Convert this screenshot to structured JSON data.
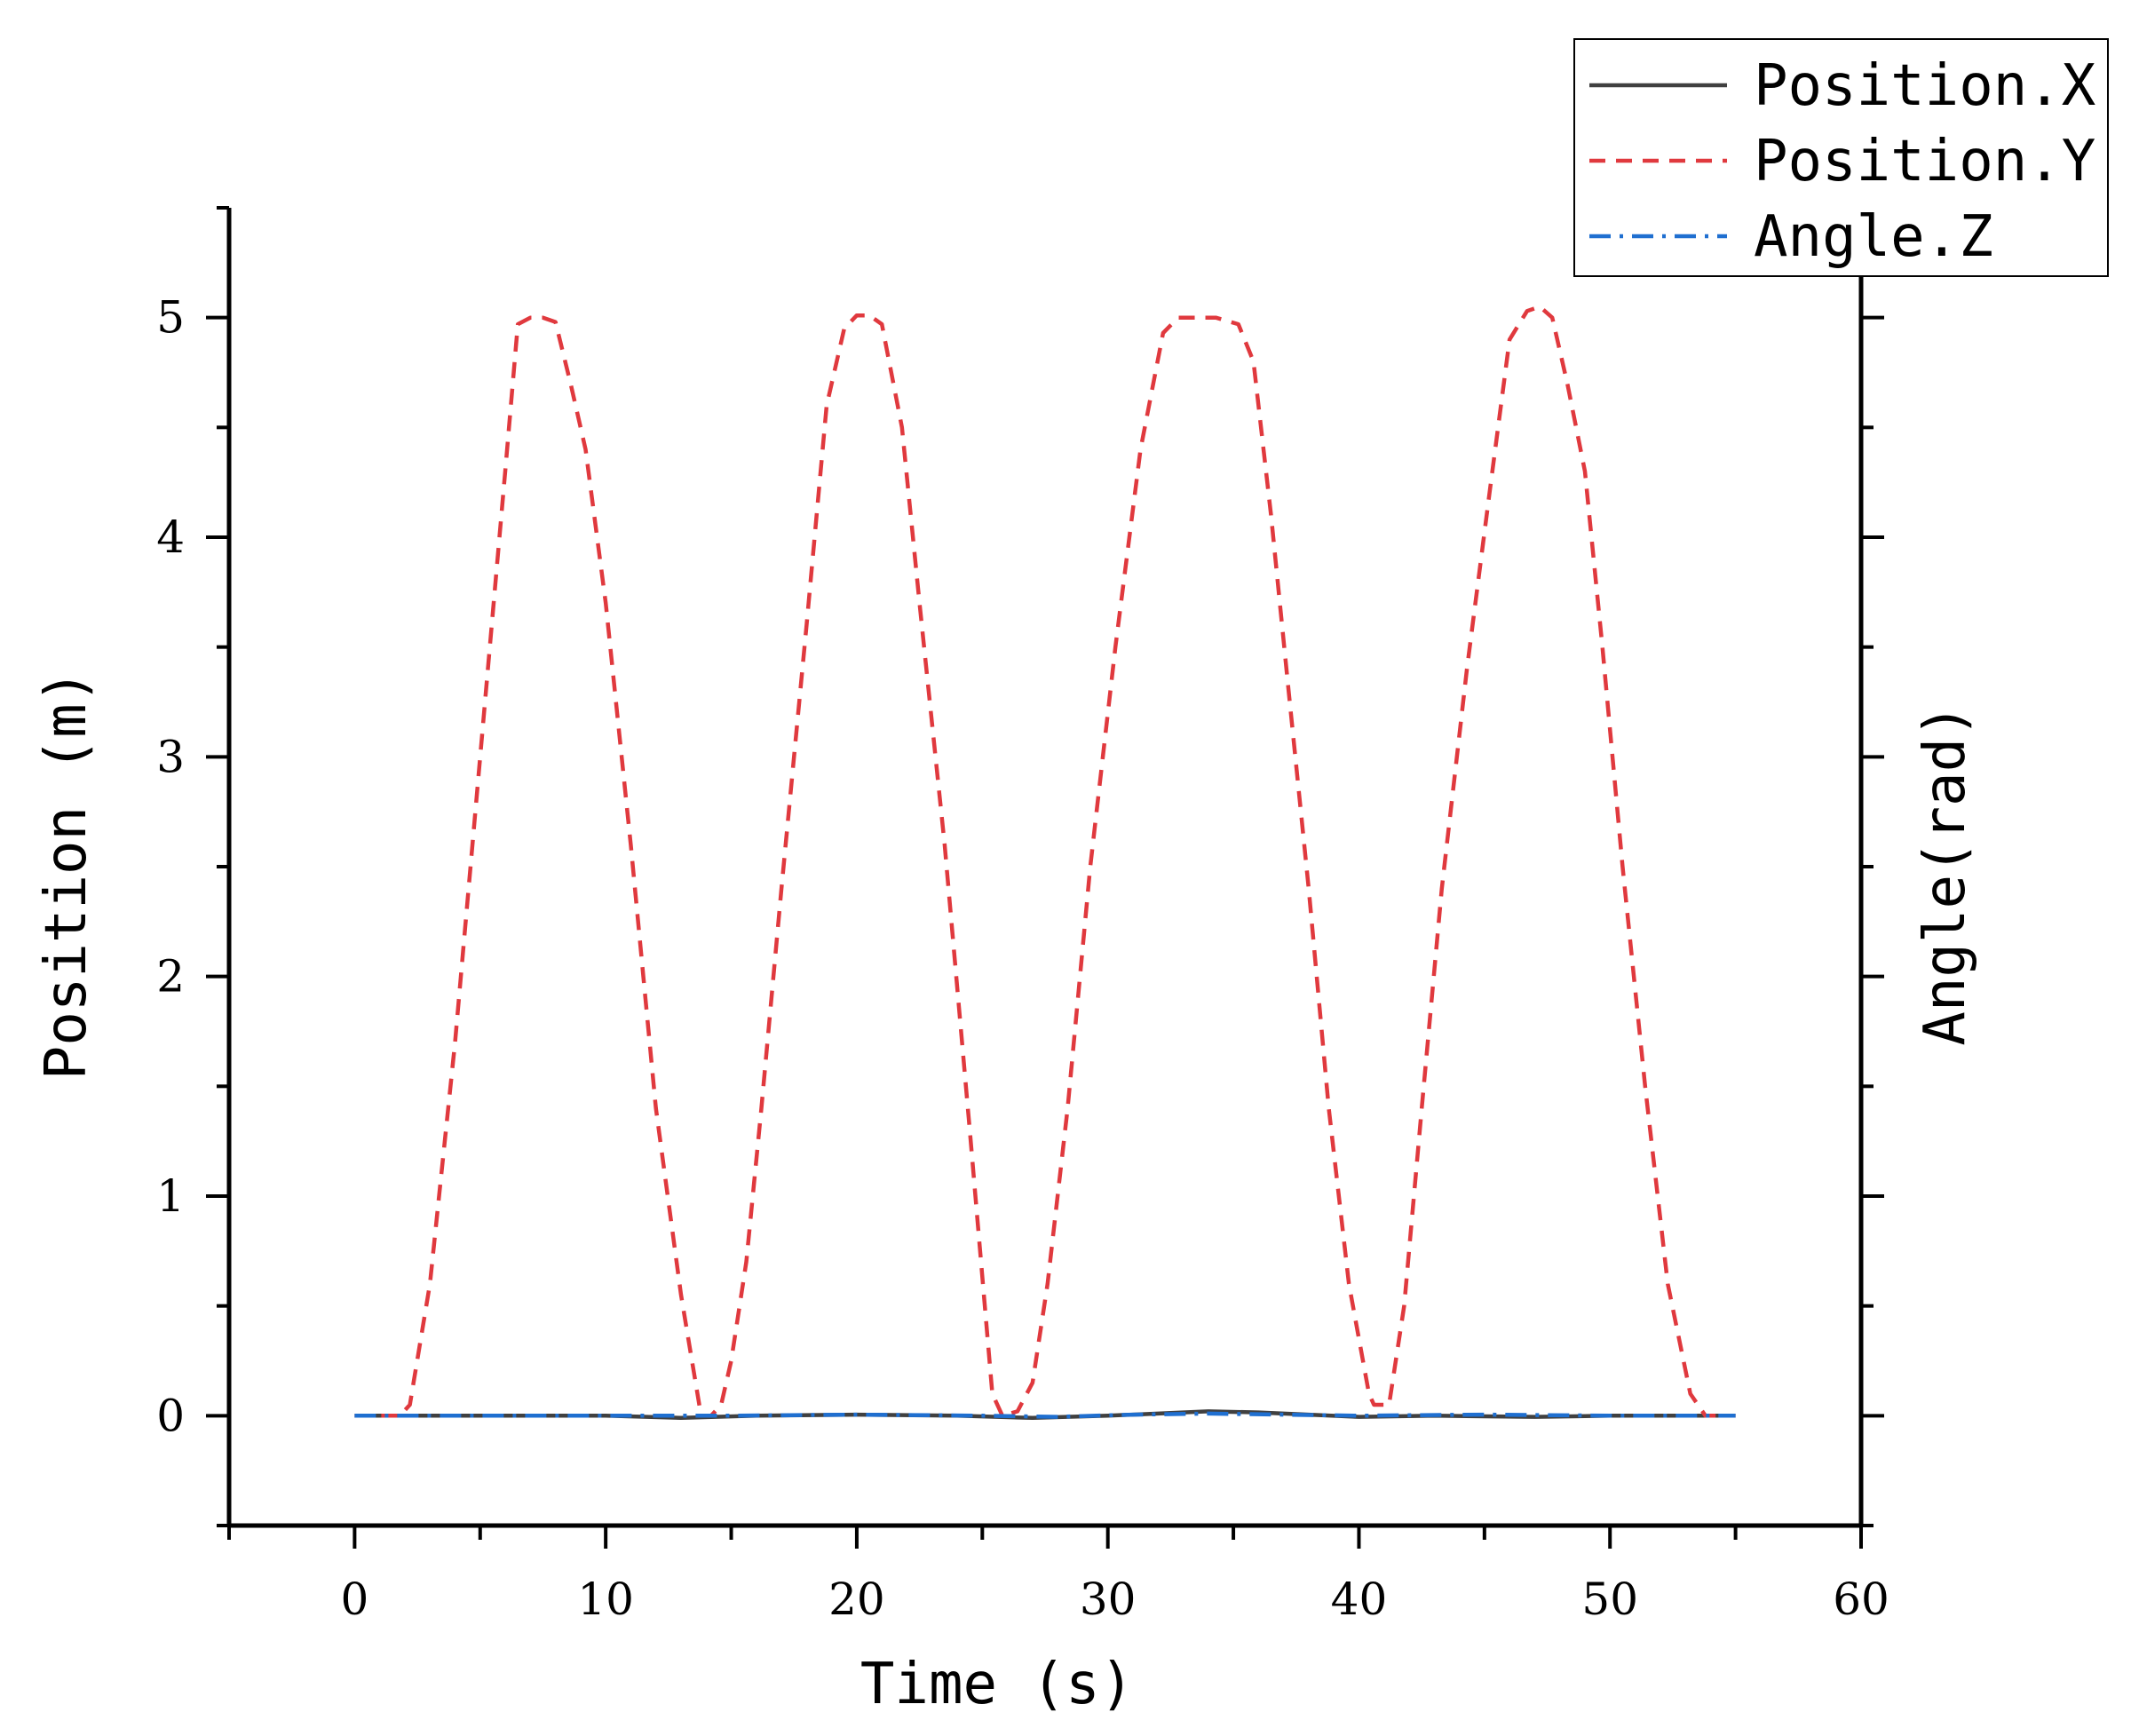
{
  "chart_data": {
    "type": "line",
    "xlabel": "Time (s)",
    "ylabel": "Position (m)",
    "y2label": "Angle(rad)",
    "xlim": [
      -5,
      60
    ],
    "ylim": [
      -0.5,
      5.5
    ],
    "xticks": [
      0,
      10,
      20,
      30,
      40,
      50,
      60
    ],
    "yticks": [
      0,
      1,
      2,
      3,
      4,
      5
    ],
    "grid": false,
    "legend_position": "top-right",
    "series": [
      {
        "name": "Position.X",
        "color": "#404040",
        "dash": "solid",
        "x": [
          0,
          5,
          10,
          13,
          16,
          20,
          24,
          27,
          30,
          32,
          34,
          36,
          38,
          40,
          43,
          47,
          50,
          53,
          55
        ],
        "y": [
          0,
          0,
          0,
          -0.01,
          0,
          0.005,
          0,
          -0.01,
          0,
          0.01,
          0.02,
          0.015,
          0.005,
          -0.005,
          0,
          -0.005,
          0,
          0,
          0
        ]
      },
      {
        "name": "Position.Y",
        "color": "#e0393e",
        "dash": "dashed",
        "x": [
          0,
          1.8,
          2.2,
          3,
          4,
          5,
          6,
          6.5,
          7,
          7.5,
          8,
          8.6,
          9.2,
          10,
          11,
          12,
          13,
          13.8,
          14.2,
          14.6,
          15,
          15.6,
          16.2,
          17,
          18,
          18.8,
          19.5,
          20,
          20.5,
          21,
          21.8,
          22.5,
          23.5,
          24.5,
          25.4,
          25.8,
          26.4,
          27,
          27.6,
          28.4,
          29.3,
          30.3,
          31.3,
          32.2,
          32.8,
          33.5,
          34.3,
          35.2,
          35.8,
          36.5,
          37.2,
          38,
          38.8,
          39.6,
          40.4,
          40.6,
          41.2,
          41.8,
          42.5,
          43.3,
          44.3,
          45.2,
          46,
          46.7,
          47.2,
          47.7,
          48.3,
          49,
          49.7,
          50.5,
          51.4,
          52.3,
          53.2,
          53.8,
          54.2,
          55
        ],
        "y": [
          0,
          0,
          0.05,
          0.6,
          1.7,
          3.0,
          4.3,
          4.97,
          5.0,
          5.0,
          4.98,
          4.7,
          4.4,
          3.7,
          2.6,
          1.4,
          0.55,
          0,
          0,
          0.05,
          0.25,
          0.7,
          1.4,
          2.4,
          3.6,
          4.6,
          4.95,
          5.01,
          5.01,
          4.97,
          4.5,
          3.7,
          2.6,
          1.3,
          0.1,
          0,
          0.02,
          0.15,
          0.6,
          1.4,
          2.5,
          3.5,
          4.4,
          4.93,
          5.0,
          5.0,
          5.0,
          4.97,
          4.8,
          4.1,
          3.3,
          2.4,
          1.4,
          0.6,
          0.1,
          0.05,
          0.05,
          0.5,
          1.4,
          2.4,
          3.4,
          4.2,
          4.9,
          5.03,
          5.05,
          5.0,
          4.7,
          4.3,
          3.5,
          2.5,
          1.5,
          0.6,
          0.1,
          0,
          0,
          0
        ]
      },
      {
        "name": "Angle.Z",
        "color": "#1f6fd0",
        "dash": "dashdot",
        "x": [
          0,
          5,
          10,
          15,
          20,
          25,
          28,
          31,
          34,
          37,
          40,
          45,
          50,
          55
        ],
        "y": [
          0,
          0,
          0,
          0,
          0.005,
          0,
          -0.005,
          0.005,
          0.01,
          0.005,
          0,
          0.005,
          0,
          0
        ]
      }
    ]
  }
}
